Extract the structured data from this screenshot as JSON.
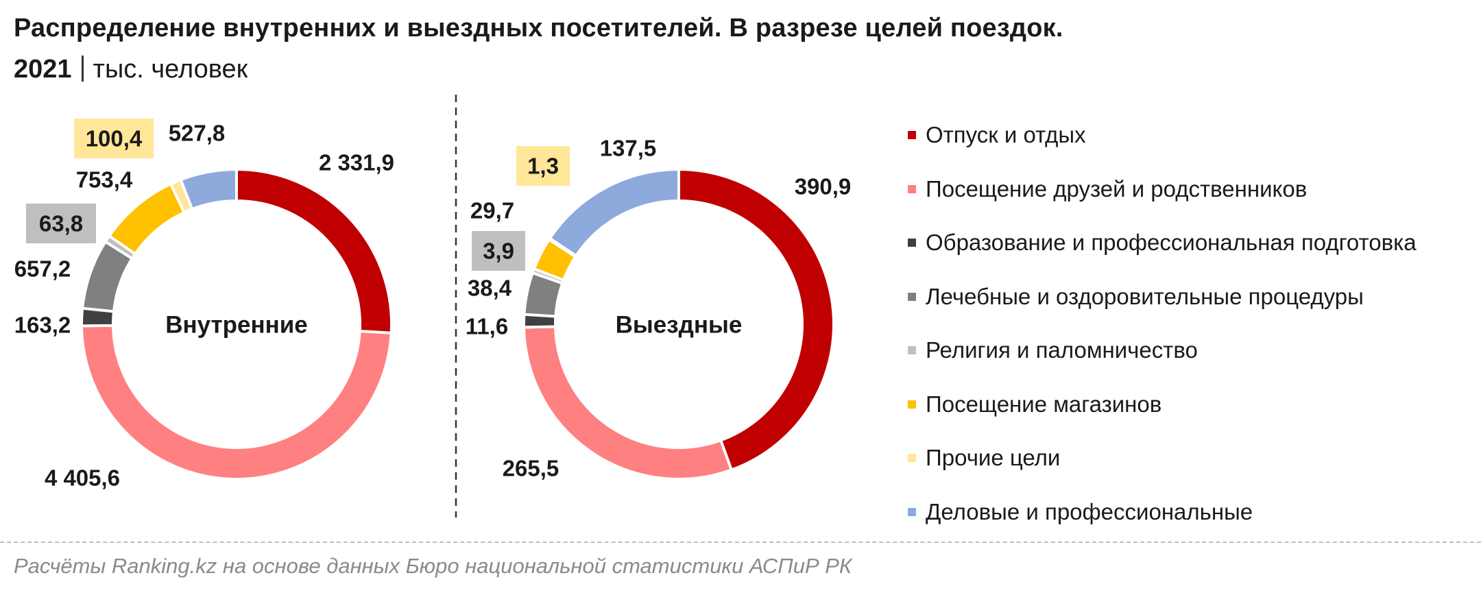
{
  "title": "Распределение внутренних и выездных посетителей. В разрезе целей поездок.",
  "subtitle": {
    "year": "2021",
    "unit": "тыс. человек"
  },
  "source": "Расчёты Ranking.kz на основе данных Бюро национальной статистики АСПиР РК",
  "colors": {
    "Отпуск и отдых": "#C00000",
    "Посещение друзей и родственников": "#FF8080",
    "Образование и профессиональная подготовка": "#404040",
    "Лечебные и оздоровительные процедуры": "#808080",
    "Религия и паломничество": "#BFBFBF",
    "Посещение магазинов": "#FFC000",
    "Прочие цели": "#FFE699",
    "Деловые и профессиональные": "#8EA9DB"
  },
  "chart_data": [
    {
      "type": "pie",
      "donut": true,
      "center_label": "Внутренние",
      "categories": [
        "Отпуск и отдых",
        "Посещение друзей и родственников",
        "Образование и профессиональная подготовка",
        "Лечебные и оздоровительные процедуры",
        "Религия и паломничество",
        "Посещение магазинов",
        "Прочие цели",
        "Деловые и профессиональные"
      ],
      "values": [
        2331.9,
        4405.6,
        163.2,
        657.2,
        63.8,
        753.4,
        100.4,
        527.8
      ],
      "data_labels": [
        "2 331,9",
        "4 405,6",
        "163,2",
        "657,2",
        "63,8",
        "753,4",
        "100,4",
        "527,8"
      ],
      "legend": "right"
    },
    {
      "type": "pie",
      "donut": true,
      "center_label": "Выездные",
      "categories": [
        "Отпуск и отдых",
        "Посещение друзей и родственников",
        "Образование и профессиональная подготовка",
        "Лечебные и оздоровительные процедуры",
        "Религия и паломничество",
        "Посещение магазинов",
        "Прочие цели",
        "Деловые и профессиональные"
      ],
      "values": [
        390.9,
        265.5,
        11.6,
        38.4,
        3.9,
        29.7,
        1.3,
        137.5
      ],
      "data_labels": [
        "390,9",
        "265,5",
        "11,6",
        "38,4",
        "3,9",
        "29,7",
        "1,3",
        "137,5"
      ],
      "legend": "right"
    }
  ]
}
